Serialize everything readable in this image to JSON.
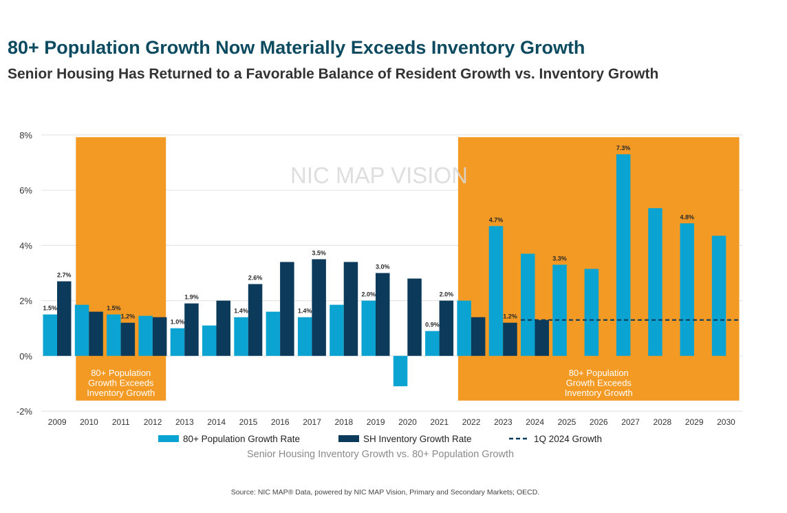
{
  "title": "80+ Population Growth Now Materially Exceeds Inventory Growth",
  "subtitle": "Senior Housing Has Returned to a Favorable Balance of Resident Growth vs. Inventory Growth",
  "watermark": "NIC MAP VISION",
  "source": "Source: NIC MAP® Data, powered by NIC MAP Vision, Primary and Secondary Markets; OECD.",
  "colors": {
    "population": "#0ba3d1",
    "inventory": "#0b3a5a",
    "highlight": "#f39a25",
    "reference": "#0b3a5a",
    "axis_text": "#333333",
    "grid": "#e5e5e5"
  },
  "chart_data": {
    "type": "bar",
    "title": "Senior Housing Inventory Growth vs. 80+ Population Growth",
    "xlabel": "",
    "ylabel": "",
    "categories": [
      "2009",
      "2010",
      "2011",
      "2012",
      "2013",
      "2014",
      "2015",
      "2016",
      "2017",
      "2018",
      "2019",
      "2020",
      "2021",
      "2022",
      "2023",
      "2024",
      "2025",
      "2026",
      "2027",
      "2028",
      "2029",
      "2030"
    ],
    "ylim": [
      -2,
      8
    ],
    "yticks": [
      -2,
      0,
      2,
      4,
      6,
      8
    ],
    "ytick_labels": [
      "-2%",
      "0%",
      "2%",
      "4%",
      "6%",
      "8%"
    ],
    "grid": true,
    "series": [
      {
        "name": "80+ Population Growth Rate",
        "color": "#0ba3d1",
        "values": [
          1.5,
          1.85,
          1.5,
          1.45,
          1.0,
          1.1,
          1.4,
          1.6,
          1.4,
          1.85,
          2.0,
          -1.1,
          0.9,
          2.0,
          4.7,
          3.7,
          3.3,
          3.15,
          7.3,
          5.35,
          4.8,
          4.35
        ],
        "data_labels": [
          "1.5%",
          "",
          "1.5%",
          "",
          "1.0%",
          "",
          "1.4%",
          "",
          "1.4%",
          "",
          "2.0%",
          "",
          "0.9%",
          "",
          "4.7%",
          "",
          "3.3%",
          "",
          "7.3%",
          "",
          "4.8%",
          ""
        ]
      },
      {
        "name": "SH Inventory Growth Rate",
        "color": "#0b3a5a",
        "values": [
          2.7,
          1.6,
          1.2,
          1.4,
          1.9,
          2.0,
          2.6,
          3.4,
          3.5,
          3.4,
          3.0,
          2.8,
          2.0,
          1.4,
          1.2,
          1.3,
          null,
          null,
          null,
          null,
          null,
          null
        ],
        "data_labels": [
          "2.7%",
          "",
          "1.2%",
          "",
          "1.9%",
          "",
          "2.6%",
          "",
          "3.5%",
          "",
          "3.0%",
          "",
          "2.0%",
          "",
          "1.2%",
          "",
          "",
          "",
          "",
          "",
          "",
          ""
        ]
      }
    ],
    "reference_line": {
      "name": "1Q 2024 Growth",
      "value": 1.3,
      "from": "2024",
      "to": "2030",
      "style": "dashed"
    },
    "highlight_regions": [
      {
        "from": "2010",
        "to": "2012",
        "label_lines": [
          "80+ Population",
          "Growth Exceeds",
          "Inventory Growth"
        ]
      },
      {
        "from": "2022",
        "to": "2030",
        "label_lines": [
          "80+ Population",
          "Growth Exceeds",
          "Inventory Growth"
        ]
      }
    ],
    "legend_placement": "bottom"
  }
}
